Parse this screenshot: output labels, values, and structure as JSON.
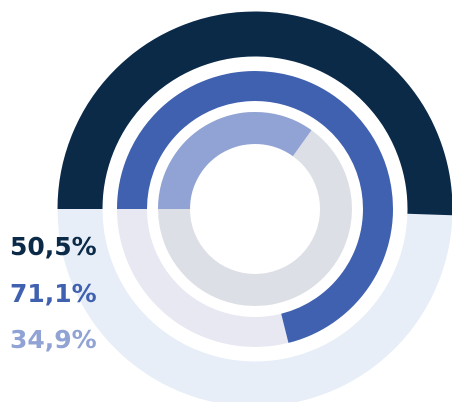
{
  "chart_data": {
    "type": "radial",
    "values": [
      50.5,
      71.1,
      34.9
    ],
    "value_labels": [
      "50,5%",
      "71,1%",
      "34,9%"
    ],
    "colors": [
      "#0b2a48",
      "#4061b0",
      "#91a3d4"
    ],
    "track_colors": [
      "#e7eef8",
      "#e8e8f3",
      "#dddfe6"
    ],
    "ylim": [
      0,
      100
    ]
  }
}
